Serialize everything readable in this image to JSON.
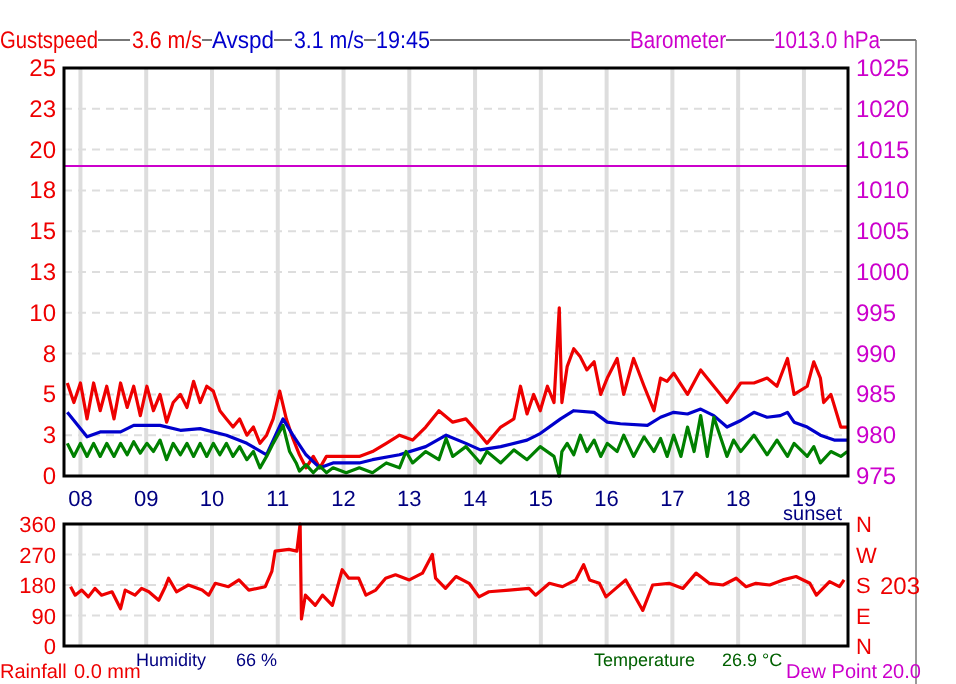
{
  "chart_data": [
    {
      "type": "line",
      "legend": "top",
      "grid": true,
      "xlim": [
        7.75,
        19.67
      ],
      "xticks": [
        {
          "value": 8,
          "label": "08"
        },
        {
          "value": 9,
          "label": "09"
        },
        10,
        11,
        12,
        13,
        14,
        15,
        16,
        17,
        18,
        19
      ],
      "ylim": [
        0,
        25
      ],
      "yticks": [
        0,
        {
          "value": 2.5,
          "label": "3"
        },
        5,
        {
          "value": 7.5,
          "label": "8"
        },
        10,
        {
          "value": 12.5,
          "label": "13"
        },
        15,
        {
          "value": 17.5,
          "label": "18"
        },
        20,
        {
          "value": 22.5,
          "label": "23"
        },
        25
      ],
      "y2lim": [
        975,
        1025
      ],
      "y2ticks": [
        975,
        980,
        985,
        990,
        995,
        1000,
        1005,
        1010,
        1015,
        1020,
        1025
      ],
      "annotations": [
        "3.6 m/s",
        "3.1 m/s",
        "19:45",
        "1013.0 hPa",
        "sunset"
      ],
      "series": [
        {
          "name": "Gustspeed",
          "color": "#ee0000",
          "x": [
            7.8,
            7.9,
            8.0,
            8.1,
            8.2,
            8.3,
            8.4,
            8.51,
            8.61,
            8.71,
            8.81,
            8.91,
            9.01,
            9.11,
            9.21,
            9.31,
            9.41,
            9.52,
            9.62,
            9.72,
            9.82,
            9.92,
            10.02,
            10.12,
            10.22,
            10.32,
            10.42,
            10.53,
            10.63,
            10.73,
            10.83,
            10.93,
            11.03,
            11.13,
            11.23,
            11.33,
            11.43,
            11.54,
            11.64,
            11.74,
            11.84,
            12.04,
            12.24,
            12.44,
            12.65,
            12.85,
            13.05,
            13.25,
            13.45,
            13.66,
            13.86,
            14.08,
            14.18,
            14.39,
            14.59,
            14.69,
            14.79,
            14.89,
            14.99,
            15.1,
            15.2,
            15.28,
            15.32,
            15.4,
            15.5,
            15.6,
            15.7,
            15.81,
            15.91,
            16.01,
            16.16,
            16.26,
            16.41,
            16.57,
            16.72,
            16.82,
            16.92,
            17.02,
            17.23,
            17.43,
            17.63,
            17.83,
            18.04,
            18.24,
            18.44,
            18.59,
            18.75,
            18.85,
            19.05,
            19.15,
            19.25,
            19.3,
            19.41,
            19.56,
            19.66
          ],
          "values": [
            5.7,
            4.5,
            5.7,
            3.5,
            5.7,
            4,
            5.5,
            3.5,
            5.7,
            4.2,
            5.5,
            3.7,
            5.5,
            4,
            5,
            3.3,
            4.5,
            5,
            4.2,
            5.8,
            4.5,
            5.5,
            5.2,
            4,
            3.5,
            3,
            3.5,
            2.5,
            3,
            2,
            2.5,
            3.5,
            5.2,
            3.5,
            2.3,
            1.3,
            0.5,
            1.2,
            0.5,
            1.2,
            1.2,
            1.2,
            1.2,
            1.5,
            2,
            2.5,
            2.2,
            3,
            4,
            3.3,
            3.5,
            2.5,
            2,
            3,
            3.5,
            5.5,
            3.8,
            5,
            4,
            5.5,
            4.5,
            10.3,
            4.5,
            6.7,
            7.8,
            7.3,
            6.5,
            7,
            5,
            6,
            7.2,
            5,
            7.2,
            5.5,
            4,
            6,
            5.8,
            6.3,
            5,
            6.5,
            5.5,
            4.5,
            5.7,
            5.7,
            6,
            5.5,
            7.2,
            5,
            5.5,
            7,
            6,
            4.5,
            5,
            3,
            3
          ]
        },
        {
          "name": "Avspd",
          "color": "#0000cc",
          "x": [
            7.8,
            8.1,
            8.3,
            8.61,
            8.81,
            9.21,
            9.52,
            9.82,
            10.22,
            10.53,
            10.83,
            11.08,
            11.23,
            11.43,
            11.64,
            11.84,
            12.24,
            12.44,
            12.85,
            13.25,
            13.56,
            13.86,
            14.08,
            14.39,
            14.79,
            14.99,
            15.3,
            15.5,
            15.81,
            16.01,
            16.21,
            16.62,
            16.82,
            17.02,
            17.23,
            17.43,
            17.63,
            17.83,
            18.04,
            18.24,
            18.44,
            18.64,
            18.75,
            18.85,
            19.05,
            19.25,
            19.46,
            19.66
          ],
          "values": [
            3.9,
            2.4,
            2.7,
            2.7,
            3.1,
            3.1,
            2.8,
            2.9,
            2.5,
            2,
            1.3,
            3.5,
            2.5,
            1.3,
            0.5,
            0.8,
            0.8,
            1,
            1.3,
            1.8,
            2.5,
            2,
            1.6,
            1.8,
            2.2,
            2.6,
            3.5,
            4,
            3.9,
            3.3,
            3.2,
            3.1,
            3.6,
            3.9,
            3.8,
            4.1,
            3.7,
            3,
            3.4,
            3.9,
            3.6,
            3.7,
            3.9,
            3.3,
            3,
            2.5,
            2.2,
            2.2
          ]
        },
        {
          "color": "#008000",
          "x": [
            7.8,
            7.9,
            8.0,
            8.1,
            8.2,
            8.3,
            8.4,
            8.51,
            8.61,
            8.71,
            8.81,
            8.91,
            9.01,
            9.11,
            9.21,
            9.31,
            9.41,
            9.52,
            9.62,
            9.72,
            9.82,
            9.92,
            10.02,
            10.12,
            10.22,
            10.32,
            10.42,
            10.53,
            10.63,
            10.73,
            10.83,
            10.93,
            11.08,
            11.18,
            11.28,
            11.33,
            11.43,
            11.54,
            11.64,
            11.74,
            11.84,
            12.04,
            12.24,
            12.44,
            12.65,
            12.85,
            12.95,
            13.05,
            13.25,
            13.45,
            13.56,
            13.66,
            13.86,
            14.08,
            14.18,
            14.39,
            14.59,
            14.79,
            14.99,
            15.2,
            15.28,
            15.32,
            15.4,
            15.5,
            15.6,
            15.7,
            15.81,
            15.91,
            16.01,
            16.16,
            16.26,
            16.41,
            16.57,
            16.72,
            16.82,
            16.92,
            17.02,
            17.13,
            17.23,
            17.33,
            17.43,
            17.53,
            17.63,
            17.83,
            17.93,
            18.04,
            18.24,
            18.44,
            18.59,
            18.75,
            18.85,
            19.05,
            19.15,
            19.25,
            19.41,
            19.56,
            19.66
          ],
          "values": [
            2,
            1.2,
            2,
            1.2,
            2,
            1.2,
            2,
            1.2,
            2,
            1.3,
            2.1,
            1.4,
            2,
            1.5,
            2.2,
            1,
            2,
            1.3,
            2,
            1.2,
            2,
            1.2,
            2,
            1.3,
            2,
            1.2,
            1.8,
            1,
            1.5,
            0.5,
            1.2,
            2,
            3.1,
            1.5,
            0.8,
            0.3,
            0.7,
            0.2,
            0.6,
            0.2,
            0.5,
            0.2,
            0.5,
            0.2,
            0.8,
            0.5,
            1.5,
            0.8,
            1.5,
            1,
            2.3,
            1.2,
            1.8,
            0.8,
            1.5,
            0.8,
            1.6,
            1,
            1.8,
            1.2,
            0,
            1.5,
            2,
            1.3,
            2.5,
            1.5,
            2.2,
            1.2,
            2,
            1.5,
            2.5,
            1.2,
            2.4,
            1.5,
            2.3,
            1.2,
            2.5,
            1.2,
            3,
            1.5,
            3.7,
            1.2,
            3.6,
            1.2,
            2.2,
            1.5,
            2.5,
            1.3,
            2.2,
            1.2,
            2,
            1.2,
            1.8,
            0.8,
            1.5,
            1.2,
            1.5
          ]
        },
        {
          "name": "Barometer",
          "color": "#cc00cc",
          "axis": "y2",
          "x": [
            7.75,
            19.67
          ],
          "values": [
            1013,
            1013
          ]
        }
      ]
    },
    {
      "type": "line",
      "grid": true,
      "tick_labels": "y",
      "xlim": [
        7.75,
        19.67
      ],
      "xticks": [
        8,
        9,
        10,
        11,
        12,
        13,
        14,
        15,
        16,
        17,
        18,
        19
      ],
      "ylim": [
        0,
        360
      ],
      "yticks": [
        0,
        90,
        180,
        270,
        360
      ],
      "annotations": [
        "Rainfall",
        "0.0 mm",
        "Humidity",
        "66 %",
        "Temperature",
        "26.9 °C",
        "Dew Point",
        "20.0",
        "203",
        "N",
        "W",
        "S",
        "E",
        "N"
      ],
      "series": [
        {
          "color": "#ee0000",
          "x": [
            7.85,
            7.92,
            8.02,
            8.12,
            8.22,
            8.32,
            8.48,
            8.61,
            8.68,
            8.83,
            8.93,
            9.04,
            9.19,
            9.29,
            9.34,
            9.46,
            9.64,
            9.85,
            9.95,
            10.05,
            10.25,
            10.41,
            10.56,
            10.81,
            10.91,
            10.96,
            11.17,
            11.29,
            11.34,
            11.36,
            11.42,
            11.57,
            11.68,
            11.83,
            11.98,
            12.08,
            12.23,
            12.34,
            12.49,
            12.64,
            12.79,
            13.0,
            13.2,
            13.35,
            13.4,
            13.55,
            13.71,
            13.91,
            14.06,
            14.21,
            14.52,
            14.82,
            14.92,
            15.13,
            15.33,
            15.53,
            15.65,
            15.74,
            15.89,
            15.99,
            16.14,
            16.29,
            16.55,
            16.7,
            16.95,
            17.16,
            17.36,
            17.56,
            17.77,
            17.97,
            18.12,
            18.27,
            18.48,
            18.68,
            18.88,
            19.09,
            19.19,
            19.39,
            19.54,
            19.61
          ],
          "values": [
            175,
            150,
            165,
            145,
            170,
            150,
            160,
            110,
            165,
            150,
            170,
            160,
            135,
            175,
            200,
            160,
            180,
            165,
            150,
            185,
            175,
            195,
            165,
            175,
            220,
            280,
            285,
            280,
            360,
            80,
            150,
            120,
            150,
            120,
            225,
            200,
            200,
            150,
            165,
            200,
            210,
            195,
            215,
            270,
            200,
            170,
            205,
            185,
            145,
            160,
            165,
            170,
            150,
            185,
            175,
            195,
            240,
            195,
            185,
            145,
            170,
            195,
            105,
            180,
            185,
            170,
            215,
            185,
            180,
            200,
            175,
            185,
            180,
            195,
            205,
            185,
            150,
            190,
            175,
            195
          ]
        }
      ]
    }
  ]
}
